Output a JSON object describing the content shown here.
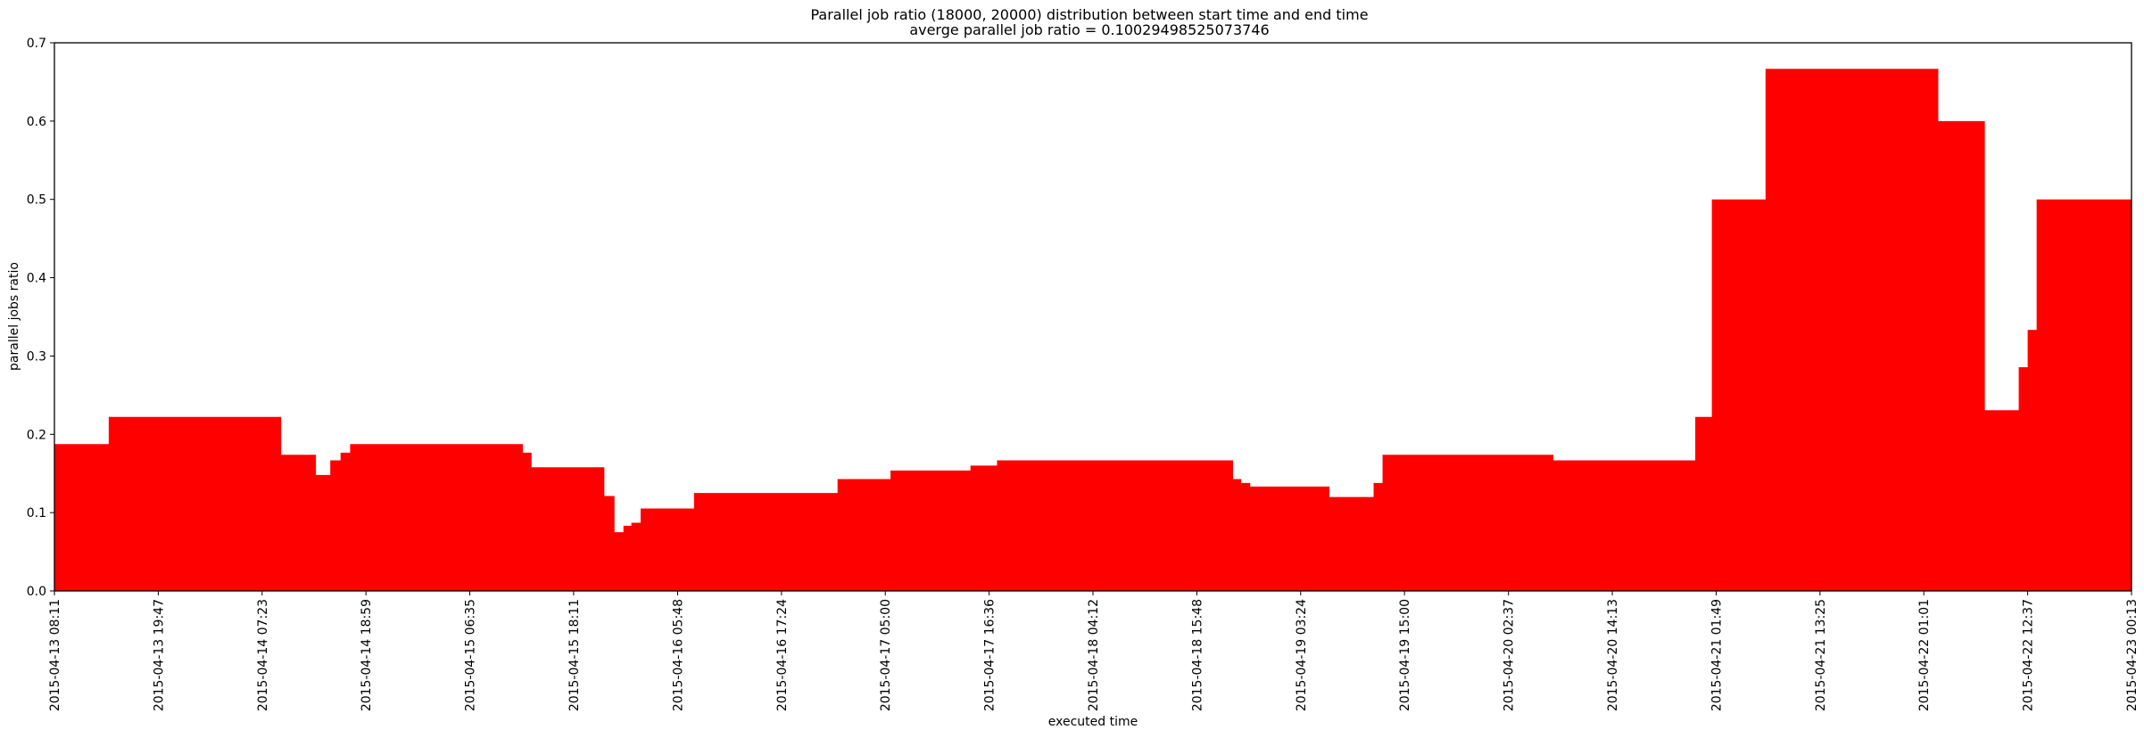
{
  "chart_data": {
    "type": "area",
    "title": "Parallel job ratio (18000, 20000) distribution between start time and end time",
    "subtitle": "averge parallel job ratio = 0.10029498525073746",
    "xlabel": "executed time",
    "ylabel": "parallel jobs ratio",
    "ylim": [
      0,
      0.7
    ],
    "yticks": [
      "0.0",
      "0.1",
      "0.2",
      "0.3",
      "0.4",
      "0.5",
      "0.6",
      "0.7"
    ],
    "xticks": [
      "2015-04-13 08:11",
      "2015-04-13 19:47",
      "2015-04-14 07:23",
      "2015-04-14 18:59",
      "2015-04-15 06:35",
      "2015-04-15 18:11",
      "2015-04-16 05:48",
      "2015-04-16 17:24",
      "2015-04-17 05:00",
      "2015-04-17 16:36",
      "2015-04-18 04:12",
      "2015-04-18 15:48",
      "2015-04-19 03:24",
      "2015-04-19 15:00",
      "2015-04-20 02:37",
      "2015-04-20 14:13",
      "2015-04-21 01:49",
      "2015-04-21 13:25",
      "2015-04-22 01:01",
      "2015-04-22 12:37",
      "2015-04-23 00:13"
    ],
    "color": "#ff0000",
    "grid": false,
    "steps": [
      [
        "2015-04-13 08:11",
        0.1875
      ],
      [
        "2015-04-13 14:15",
        0.2222
      ],
      [
        "2015-04-14 09:31",
        0.1739
      ],
      [
        "2015-04-14 13:24",
        0.1481
      ],
      [
        "2015-04-14 15:00",
        0.1667
      ],
      [
        "2015-04-14 16:09",
        0.1765
      ],
      [
        "2015-04-14 17:13",
        0.1875
      ],
      [
        "2015-04-15 12:31",
        0.1765
      ],
      [
        "2015-04-15 13:29",
        0.1579
      ],
      [
        "2015-04-15 21:37",
        0.1212
      ],
      [
        "2015-04-15 22:45",
        0.075
      ],
      [
        "2015-04-15 23:45",
        0.0833
      ],
      [
        "2015-04-16 00:38",
        0.087
      ],
      [
        "2015-04-16 01:40",
        0.1053
      ],
      [
        "2015-04-16 07:38",
        0.125
      ],
      [
        "2015-04-16 23:40",
        0.1429
      ],
      [
        "2015-04-17 05:35",
        0.1538
      ],
      [
        "2015-04-17 14:31",
        0.16
      ],
      [
        "2015-04-17 17:29",
        0.1667
      ],
      [
        "2015-04-18 19:51",
        0.1429
      ],
      [
        "2015-04-18 20:46",
        0.1379
      ],
      [
        "2015-04-18 21:46",
        0.1333
      ],
      [
        "2015-04-19 06:37",
        0.12
      ],
      [
        "2015-04-19 11:33",
        0.1379
      ],
      [
        "2015-04-19 12:33",
        0.1739
      ],
      [
        "2015-04-20 07:38",
        0.1667
      ],
      [
        "2015-04-20 23:29",
        0.2222
      ],
      [
        "2015-04-21 01:20",
        0.5
      ],
      [
        "2015-04-21 07:20",
        0.6667
      ],
      [
        "2015-04-22 02:38",
        0.6
      ],
      [
        "2015-04-22 07:50",
        0.2308
      ],
      [
        "2015-04-22 11:37",
        0.2857
      ],
      [
        "2015-04-22 12:37",
        0.3333
      ],
      [
        "2015-04-22 13:37",
        0.5
      ],
      [
        "2015-04-23 00:13",
        0.5
      ]
    ]
  }
}
